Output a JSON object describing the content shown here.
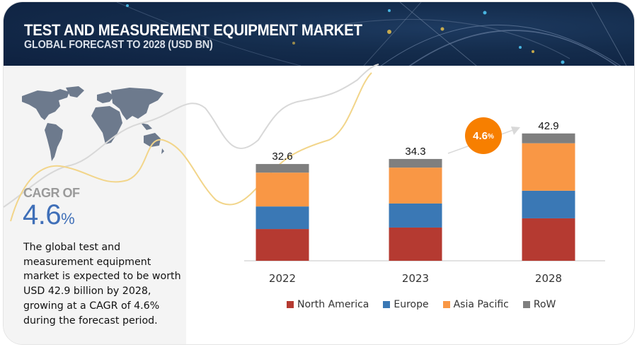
{
  "header": {
    "title": "TEST AND MEASUREMENT EQUIPMENT MARKET",
    "subtitle": "GLOBAL FORECAST TO 2028 (USD BN)"
  },
  "left_panel": {
    "map_icon": "world-map-icon",
    "cagr_label": "CAGR OF",
    "cagr_value": "4.6",
    "cagr_unit": "%",
    "description": "The global test and measurement equipment market is expected to be worth USD 42.9 billion by 2028, growing at a CAGR of 4.6% during the forecast period."
  },
  "growth_badge": {
    "value": "4.6",
    "unit": "%",
    "color": "#f77f00",
    "icon": "arrow-right-up-icon"
  },
  "chart_data": {
    "type": "bar",
    "stacked": true,
    "title": "Test and Measurement Equipment Market, Global Forecast to 2028 (USD BN)",
    "xlabel": "",
    "ylabel": "USD BN",
    "categories": [
      "2022",
      "2023",
      "2028"
    ],
    "totals": [
      "32.6",
      "34.3",
      "42.9"
    ],
    "series": [
      {
        "name": "North America",
        "color": "#b53a31",
        "values": [
          10.7,
          11.2,
          14.3
        ]
      },
      {
        "name": "Europe",
        "color": "#3a78b5",
        "values": [
          7.6,
          8.1,
          9.3
        ]
      },
      {
        "name": "Asia Pacific",
        "color": "#f99745",
        "values": [
          11.4,
          12.1,
          16.0
        ]
      },
      {
        "name": "RoW",
        "color": "#7f7f7f",
        "values": [
          2.9,
          2.9,
          3.3
        ]
      }
    ],
    "ylim": [
      0,
      45
    ],
    "grid": false,
    "legend_position": "bottom"
  }
}
